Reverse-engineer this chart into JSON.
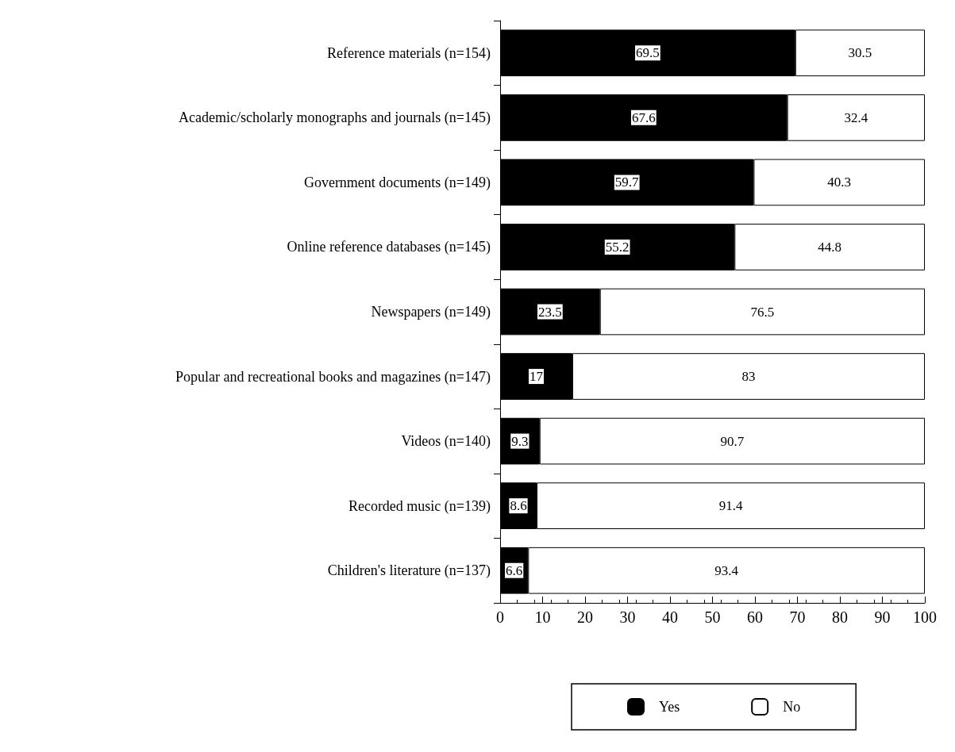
{
  "chart_data": {
    "type": "bar",
    "orientation": "horizontal",
    "stacked": true,
    "categories": [
      "Reference materials (n=154)",
      "Academic/scholarly monographs and journals (n=145)",
      "Government documents (n=149)",
      "Online reference databases (n=145)",
      "Newspapers (n=149)",
      "Popular and recreational books and magazines (n=147)",
      "Videos (n=140)",
      "Recorded music (n=139)",
      "Children's literature (n=137)"
    ],
    "series": [
      {
        "name": "Yes",
        "color": "#000000",
        "values": [
          69.5,
          67.6,
          59.7,
          55.2,
          23.5,
          17,
          9.3,
          8.6,
          6.6
        ]
      },
      {
        "name": "No",
        "color": "#ffffff",
        "values": [
          30.5,
          32.4,
          40.3,
          44.8,
          76.5,
          83,
          90.7,
          91.4,
          93.4
        ]
      }
    ],
    "xlim": [
      0,
      100
    ],
    "xticks": [
      0,
      10,
      20,
      30,
      40,
      50,
      60,
      70,
      80,
      90,
      100
    ],
    "data_labels": true,
    "grid": false,
    "legend": "bottom"
  }
}
